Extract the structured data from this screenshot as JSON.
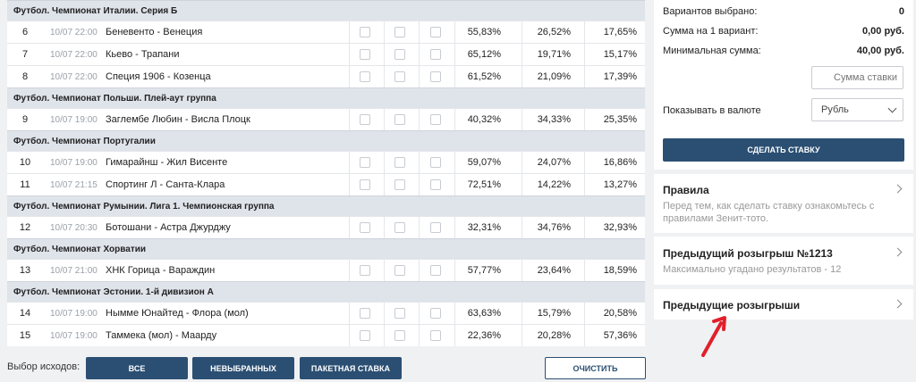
{
  "groups": [
    {
      "title": "Футбол. Чемпионат Италии. Серия Б",
      "matches": [
        {
          "num": "6",
          "time": "10/07 22:00",
          "teams": "Беневенто - Венеция",
          "p1": "55,83%",
          "px": "26,52%",
          "p2": "17,65%"
        },
        {
          "num": "7",
          "time": "10/07 22:00",
          "teams": "Кьево - Трапани",
          "p1": "65,12%",
          "px": "19,71%",
          "p2": "15,17%"
        },
        {
          "num": "8",
          "time": "10/07 22:00",
          "teams": "Специя 1906 - Козенца",
          "p1": "61,52%",
          "px": "21,09%",
          "p2": "17,39%"
        }
      ]
    },
    {
      "title": "Футбол. Чемпионат Польши. Плей-аут группа",
      "matches": [
        {
          "num": "9",
          "time": "10/07 19:00",
          "teams": "Заглембе Любин - Висла Плоцк",
          "p1": "40,32%",
          "px": "34,33%",
          "p2": "25,35%"
        }
      ]
    },
    {
      "title": "Футбол. Чемпионат Португалии",
      "matches": [
        {
          "num": "10",
          "time": "10/07 19:00",
          "teams": "Гимарайнш - Жил Висенте",
          "p1": "59,07%",
          "px": "24,07%",
          "p2": "16,86%"
        },
        {
          "num": "11",
          "time": "10/07 21:15",
          "teams": "Спортинг Л - Санта-Клара",
          "p1": "72,51%",
          "px": "14,22%",
          "p2": "13,27%"
        }
      ]
    },
    {
      "title": "Футбол. Чемпионат Румынии. Лига 1. Чемпионская группа",
      "matches": [
        {
          "num": "12",
          "time": "10/07 20:30",
          "teams": "Ботошани - Астра Джурджу",
          "p1": "32,31%",
          "px": "34,76%",
          "p2": "32,93%"
        }
      ]
    },
    {
      "title": "Футбол. Чемпионат Хорватии",
      "matches": [
        {
          "num": "13",
          "time": "10/07 21:00",
          "teams": "ХНК Горица - Вараждин",
          "p1": "57,77%",
          "px": "23,64%",
          "p2": "18,59%"
        }
      ]
    },
    {
      "title": "Футбол. Чемпионат Эстонии. 1-й дивизион А",
      "matches": [
        {
          "num": "14",
          "time": "10/07 19:00",
          "teams": "Нымме Юнайтед - Флора (мол)",
          "p1": "63,63%",
          "px": "15,79%",
          "p2": "20,58%"
        },
        {
          "num": "15",
          "time": "10/07 19:00",
          "teams": "Таммека (мол) - Маарду",
          "p1": "22,36%",
          "px": "20,28%",
          "p2": "57,36%"
        }
      ]
    }
  ],
  "bottom_bar": {
    "label": "Выбор исходов:",
    "btn_all": "ВСЕ",
    "btn_unselected": "НЕВЫБРАННЫХ",
    "btn_package": "ПАКЕТНАЯ СТАВКА",
    "btn_clear": "ОЧИСТИТЬ"
  },
  "bet_panel": {
    "variants_label": "Вариантов выбрано:",
    "variants_value": "0",
    "sum_per_variant_label": "Сумма на 1 вариант:",
    "sum_per_variant_value": "0,00 руб.",
    "min_sum_label": "Минимальная сумма:",
    "min_sum_value": "40,00 руб.",
    "stake_placeholder": "Сумма ставки",
    "currency_label": "Показывать в валюте",
    "currency_value": "Рубль",
    "place_bet_label": "СДЕЛАТЬ СТАВКУ"
  },
  "cards": {
    "rules_title": "Правила",
    "rules_sub": "Перед тем, как сделать ставку ознакомьтесь с правилами Зенит-тото.",
    "prev_draw_title": "Предыдущий розыгрыш №1213",
    "prev_draw_sub": "Максимально угадано результатов - 12",
    "prev_draws_title": "Предыдущие розыгрыши"
  },
  "colors": {
    "accent": "#2b4f73",
    "arrow": "#e0202a"
  }
}
